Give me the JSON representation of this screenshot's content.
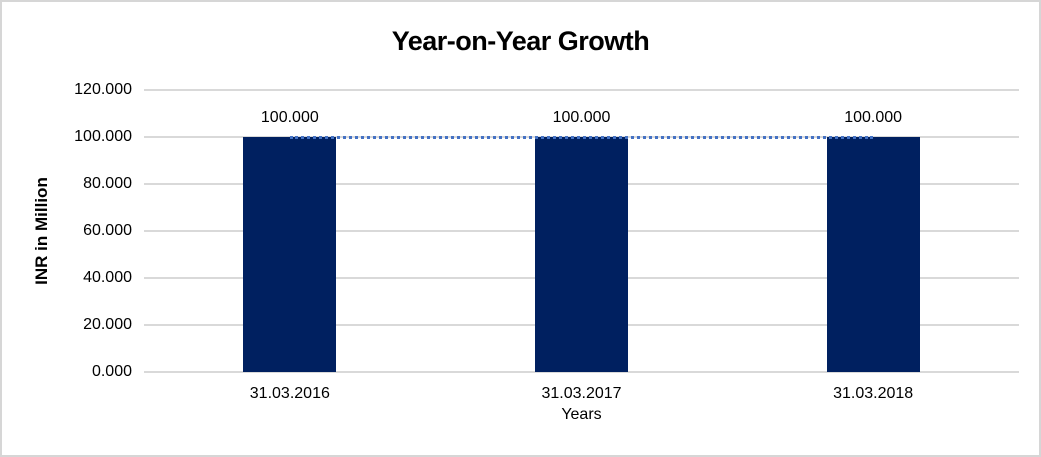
{
  "chart_data": {
    "type": "bar",
    "title": "Year-on-Year Growth",
    "xlabel": "Years",
    "ylabel": "INR in Million",
    "categories": [
      "31.03.2016",
      "31.03.2017",
      "31.03.2018"
    ],
    "series": [
      {
        "name": "value-bars",
        "type": "bar",
        "values": [
          100.0,
          100.0,
          100.0
        ],
        "color": "#002060"
      },
      {
        "name": "connector-line",
        "type": "line",
        "style": "dotted",
        "values": [
          100.0,
          100.0,
          100.0
        ],
        "color": "#4472c4"
      }
    ],
    "data_labels": [
      "100.000",
      "100.000",
      "100.000"
    ],
    "ylim": [
      0,
      120
    ],
    "ytick_step": 20,
    "ytick_labels": [
      "0.000",
      "20.000",
      "40.000",
      "60.000",
      "80.000",
      "100.000",
      "120.000"
    ],
    "grid": true,
    "legend": "none",
    "colors": {
      "bar": "#002060",
      "trendline": "#4472c4",
      "gridline": "#d9d9d9",
      "text": "#000000",
      "canvas_border": "#d6d6d6",
      "background": "#ffffff"
    }
  }
}
